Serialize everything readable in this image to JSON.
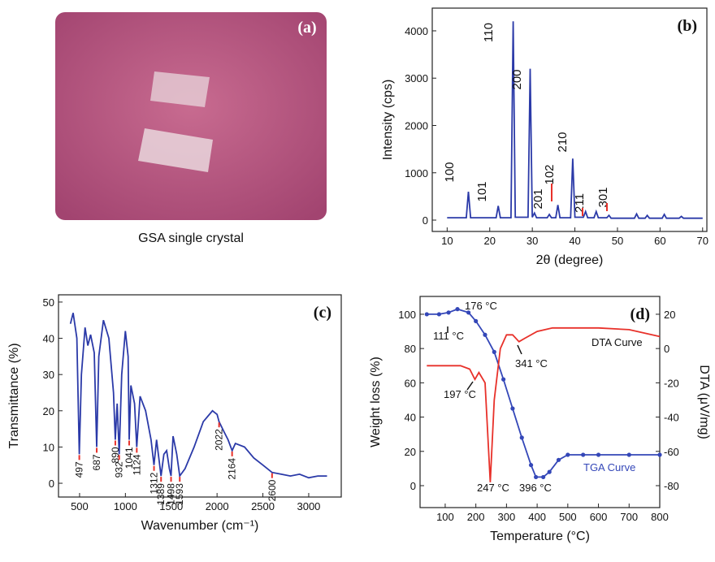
{
  "photo": {
    "label": "(a)",
    "caption": "GSA single crystal"
  },
  "chart_data": [
    {
      "type": "line",
      "panel_label": "(b)",
      "x_label": "2θ (degree)",
      "y_label": "Intensity (cps)",
      "xlim": [
        6.5,
        71
      ],
      "xticks": [
        10,
        20,
        30,
        40,
        50,
        60,
        70
      ],
      "ylim": [
        -240,
        4480
      ],
      "yticks": [
        0,
        1000,
        2000,
        3000,
        4000
      ],
      "series": [
        {
          "color": "#2b3aa8",
          "x": [
            10,
            14.5,
            15,
            15.5,
            21.5,
            22,
            22.5,
            25,
            25.5,
            26,
            29,
            29.5,
            30,
            30.5,
            31,
            33.5,
            34,
            34.5,
            35.5,
            36,
            36.5,
            39,
            39.5,
            40,
            42,
            42.5,
            43,
            44.5,
            45,
            45.5,
            47.5,
            48,
            48.5,
            54,
            54.5,
            55,
            56.5,
            57,
            57.5,
            60.5,
            61,
            61.5,
            64.5,
            65,
            65.5,
            70
          ],
          "values": [
            50,
            50,
            600,
            50,
            50,
            300,
            50,
            50,
            4200,
            60,
            60,
            3200,
            60,
            150,
            50,
            50,
            120,
            50,
            50,
            320,
            50,
            50,
            1300,
            60,
            60,
            180,
            50,
            50,
            180,
            50,
            50,
            100,
            40,
            40,
            130,
            40,
            40,
            100,
            40,
            40,
            120,
            40,
            40,
            80,
            40,
            40
          ]
        }
      ],
      "peak_labels": [
        "100",
        "101",
        "110",
        "200",
        "201",
        "102",
        "210",
        "211",
        "301"
      ]
    },
    {
      "type": "line",
      "panel_label": "(c)",
      "x_label": "Wavenumber (cm⁻¹)",
      "y_label": "Transmittance (%)",
      "xlim": [
        270,
        3355
      ],
      "xticks": [
        500,
        1000,
        1500,
        2000,
        2500,
        3000
      ],
      "ylim": [
        -3.8,
        52
      ],
      "yticks": [
        0,
        10,
        20,
        30,
        40,
        50
      ],
      "series": [
        {
          "color": "#2b3aa8",
          "x": [
            400,
            430,
            470,
            497,
            520,
            560,
            590,
            620,
            660,
            687,
            710,
            760,
            820,
            870,
            890,
            910,
            932,
            960,
            1000,
            1030,
            1041,
            1060,
            1100,
            1124,
            1160,
            1220,
            1280,
            1312,
            1340,
            1389,
            1420,
            1450,
            1480,
            1498,
            1520,
            1560,
            1593,
            1650,
            1750,
            1850,
            1950,
            2000,
            2022,
            2080,
            2120,
            2164,
            2200,
            2300,
            2400,
            2500,
            2600,
            2700,
            2800,
            2900,
            3000,
            3100,
            3200
          ],
          "values": [
            44,
            47,
            40,
            8,
            30,
            43,
            38,
            41,
            36,
            10,
            35,
            45,
            40,
            25,
            12,
            22,
            8,
            30,
            42,
            35,
            12,
            27,
            22,
            10,
            24,
            20,
            12,
            5,
            12,
            2,
            8,
            9,
            4,
            2,
            13,
            8,
            2,
            4,
            10,
            17,
            20,
            19,
            17,
            14,
            12,
            9,
            11,
            10,
            7,
            5,
            3,
            2.5,
            2,
            2.5,
            1.5,
            2,
            2
          ]
        }
      ],
      "peak_labels": [
        497,
        687,
        890,
        932,
        1041,
        1124,
        1312,
        1389,
        1498,
        1593,
        2022,
        2164,
        2600
      ]
    },
    {
      "type": "line",
      "panel_label": "(d)",
      "x_label": "Temperature (°C)",
      "y_label": "Weight loss (%)",
      "y2_label": "DTA (μV/mg)",
      "xlim": [
        18,
        800
      ],
      "xticks": [
        100,
        200,
        300,
        400,
        500,
        600,
        700,
        800
      ],
      "ylim": [
        -12.8,
        110.4
      ],
      "yticks": [
        0,
        20,
        40,
        60,
        80,
        100
      ],
      "y2lim": [
        -92.8,
        30.4
      ],
      "y2ticks": [
        -80,
        -60,
        -40,
        -20,
        0,
        20
      ],
      "series": [
        {
          "color": "#3447b8",
          "markers": true,
          "x": [
            40,
            80,
            111,
            140,
            176,
            200,
            230,
            260,
            290,
            320,
            350,
            380,
            396,
            420,
            440,
            470,
            500,
            550,
            600,
            700,
            800
          ],
          "values": [
            100,
            100,
            101,
            103,
            101,
            96,
            88,
            78,
            62,
            45,
            28,
            12,
            5,
            5,
            8,
            15,
            18,
            18,
            18,
            18,
            18
          ]
        },
        {
          "color": "#e8312a",
          "axis": "y2",
          "x": [
            40,
            100,
            150,
            180,
            197,
            210,
            230,
            247,
            260,
            280,
            300,
            320,
            341,
            360,
            400,
            450,
            500,
            600,
            700,
            800
          ],
          "values": [
            -10,
            -10,
            -10,
            -12,
            -18,
            -14,
            -20,
            -78,
            -30,
            0,
            8,
            8,
            4,
            6,
            10,
            12,
            12,
            12,
            11,
            7
          ]
        }
      ],
      "annotations": [
        "176 °C",
        "111 °C",
        "341 °C",
        "DTA Curve",
        "197 °C",
        "247 °C",
        "396 °C",
        "TGA Curve"
      ]
    }
  ]
}
